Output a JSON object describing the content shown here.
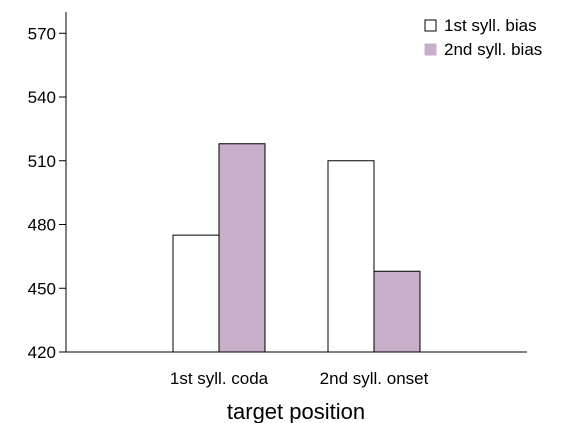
{
  "chart_data": {
    "type": "bar",
    "categories": [
      "1st syll. coda",
      "2nd syll. onset"
    ],
    "series": [
      {
        "name": "1st syll. bias",
        "values": [
          475,
          510
        ],
        "color": "#ffffff"
      },
      {
        "name": "2nd syll. bias",
        "values": [
          518,
          458
        ],
        "color": "#c9aec9"
      }
    ],
    "xlabel": "target position",
    "ylabel": "",
    "ylim": [
      420,
      580
    ],
    "yticks": [
      420,
      450,
      480,
      510,
      540,
      570
    ],
    "grid": false,
    "legend_position": "top-right"
  }
}
